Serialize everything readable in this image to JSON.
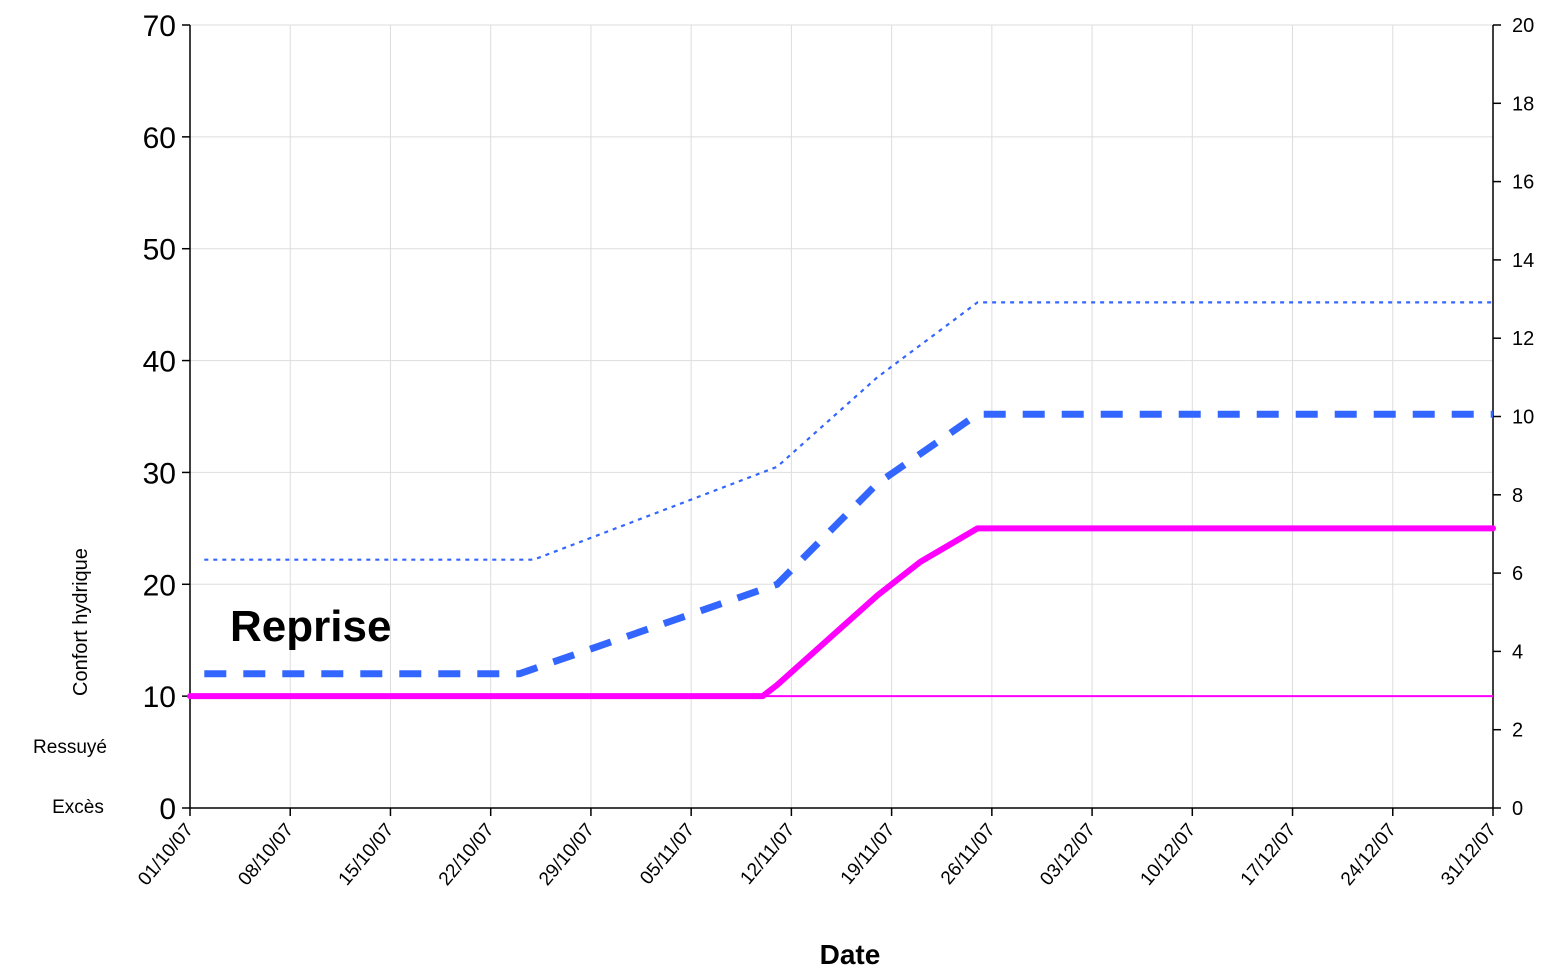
{
  "colors": {
    "magenta": "#ff00ff",
    "blue": "#3366ff",
    "grid": "#dddddd",
    "axis": "#000000"
  },
  "chart_data": {
    "type": "line",
    "title": "",
    "xlabel": "Date",
    "ylabel": "Confort hydrique",
    "ylim": [
      0,
      70
    ],
    "y2lim": [
      0,
      20
    ],
    "yticks": [
      0,
      10,
      20,
      30,
      40,
      50,
      60,
      70
    ],
    "y2ticks": [
      0,
      2,
      4,
      6,
      8,
      10,
      12,
      14,
      16,
      18,
      20
    ],
    "xlim": [
      "2007-10-01",
      "2007-12-31"
    ],
    "xticks": [
      {
        "date": "2007-10-01",
        "label": "01/10/07"
      },
      {
        "date": "2007-10-08",
        "label": "08/10/07"
      },
      {
        "date": "2007-10-15",
        "label": "15/10/07"
      },
      {
        "date": "2007-10-22",
        "label": "22/10/07"
      },
      {
        "date": "2007-10-29",
        "label": "29/10/07"
      },
      {
        "date": "2007-11-05",
        "label": "05/11/07"
      },
      {
        "date": "2007-11-12",
        "label": "12/11/07"
      },
      {
        "date": "2007-11-19",
        "label": "19/11/07"
      },
      {
        "date": "2007-11-26",
        "label": "26/11/07"
      },
      {
        "date": "2007-12-03",
        "label": "03/12/07"
      },
      {
        "date": "2007-12-10",
        "label": "10/12/07"
      },
      {
        "date": "2007-12-17",
        "label": "17/12/07"
      },
      {
        "date": "2007-12-24",
        "label": "24/12/07"
      },
      {
        "date": "2007-12-31",
        "label": "31/12/07"
      }
    ],
    "side_labels": [
      "Ressuyé",
      "Excès"
    ],
    "annotations": [
      "Reprise"
    ],
    "series": [
      {
        "style": "dotted-thin",
        "color": "#3366ff",
        "x": [
          "2007-10-02",
          "2007-10-25",
          "2007-11-11",
          "2007-11-18",
          "2007-11-25",
          "2007-12-31"
        ],
        "values": [
          22.2,
          22.2,
          30.5,
          38.5,
          45.2,
          45.2
        ]
      },
      {
        "style": "dashed-thick",
        "color": "#3366ff",
        "x": [
          "2007-10-02",
          "2007-10-24",
          "2007-11-11",
          "2007-11-18",
          "2007-11-25",
          "2007-12-31"
        ],
        "values": [
          12.0,
          12.0,
          20.0,
          29.0,
          35.2,
          35.2
        ]
      },
      {
        "style": "solid-thick",
        "color": "#ff00ff",
        "x": [
          "2007-10-01",
          "2007-11-10",
          "2007-11-11",
          "2007-11-18",
          "2007-11-21",
          "2007-11-25",
          "2007-12-31"
        ],
        "values": [
          10.0,
          10.0,
          11.0,
          19.0,
          22.0,
          25.0,
          25.0
        ]
      },
      {
        "style": "solid-thin",
        "color": "#ff00ff",
        "x": [
          "2007-10-01",
          "2007-12-31"
        ],
        "values": [
          10.0,
          10.0
        ]
      }
    ]
  }
}
